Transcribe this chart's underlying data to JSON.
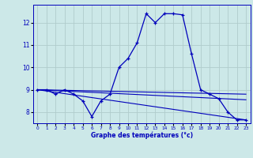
{
  "xlabel": "Graphe des températures (°c)",
  "background_color": "#cce8e8",
  "grid_color": "#b0cccc",
  "line_color": "#0000bb",
  "xlim": [
    -0.5,
    23.5
  ],
  "ylim": [
    7.5,
    12.8
  ],
  "yticks": [
    8,
    9,
    10,
    11,
    12
  ],
  "xticks": [
    0,
    1,
    2,
    3,
    4,
    5,
    6,
    7,
    8,
    9,
    10,
    11,
    12,
    13,
    14,
    15,
    16,
    17,
    18,
    19,
    20,
    21,
    22,
    23
  ],
  "line1_x": [
    0,
    1,
    2,
    3,
    4,
    5,
    6,
    7,
    8,
    9,
    10,
    11,
    12,
    13,
    14,
    15,
    16,
    17,
    18,
    19,
    20,
    21,
    22,
    23
  ],
  "line1_y": [
    9.0,
    9.0,
    8.8,
    9.0,
    8.8,
    8.5,
    7.8,
    8.5,
    8.8,
    10.0,
    10.4,
    11.1,
    12.4,
    12.0,
    12.4,
    12.4,
    12.35,
    10.6,
    9.0,
    8.8,
    8.6,
    8.0,
    7.65,
    7.65
  ],
  "line2_x": [
    0,
    23
  ],
  "line2_y": [
    9.0,
    8.8
  ],
  "line3_x": [
    0,
    23
  ],
  "line3_y": [
    9.0,
    8.55
  ],
  "line4_x": [
    0,
    23
  ],
  "line4_y": [
    9.0,
    7.65
  ]
}
